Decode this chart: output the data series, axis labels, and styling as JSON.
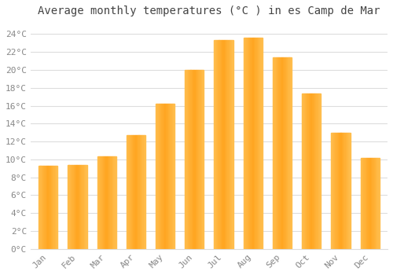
{
  "title": "Average monthly temperatures (°C ) in es Camp de Mar",
  "months": [
    "Jan",
    "Feb",
    "Mar",
    "Apr",
    "May",
    "Jun",
    "Jul",
    "Aug",
    "Sep",
    "Oct",
    "Nov",
    "Dec"
  ],
  "values": [
    9.3,
    9.4,
    10.3,
    12.7,
    16.2,
    20.0,
    23.3,
    23.6,
    21.4,
    17.4,
    13.0,
    10.2
  ],
  "bar_color_main": "#FFA520",
  "bar_color_light": "#FFD070",
  "background_color": "#FFFFFF",
  "grid_color": "#DDDDDD",
  "ytick_labels": [
    "0°C",
    "2°C",
    "4°C",
    "6°C",
    "8°C",
    "10°C",
    "12°C",
    "14°C",
    "16°C",
    "18°C",
    "20°C",
    "22°C",
    "24°C"
  ],
  "ytick_values": [
    0,
    2,
    4,
    6,
    8,
    10,
    12,
    14,
    16,
    18,
    20,
    22,
    24
  ],
  "ylim": [
    0,
    25.5
  ],
  "title_fontsize": 10,
  "tick_fontsize": 8,
  "title_color": "#444444",
  "tick_color": "#888888"
}
